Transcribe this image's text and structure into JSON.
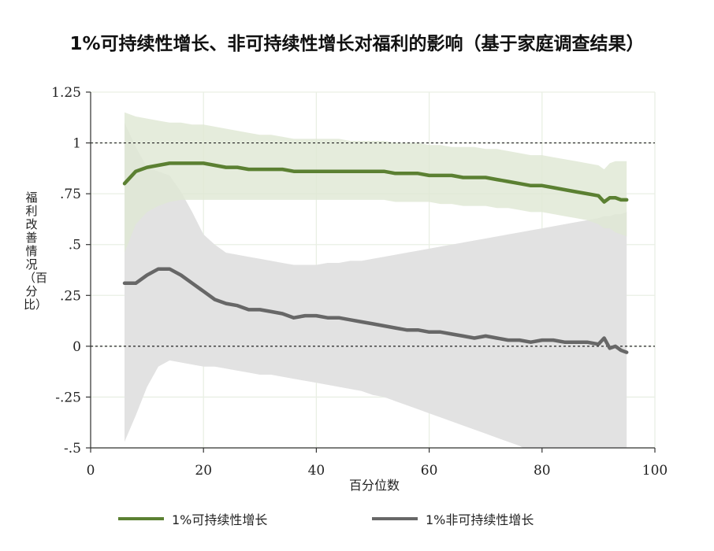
{
  "title": "1%可持续性增长、非可持续性增长对福利的影响（基于家庭调查结果）",
  "chart_data": {
    "type": "line",
    "title": "1%可持续性增长、非可持续性增长对福利的影响（基于家庭调查结果）",
    "xlabel": "百分位数",
    "ylabel": "福利改善情况（百分比）",
    "xlim": [
      0,
      100
    ],
    "ylim": [
      -0.5,
      1.25
    ],
    "xticks": [
      "0",
      "20",
      "40",
      "60",
      "80",
      "100"
    ],
    "yticks": [
      {
        "v": 1.25,
        "label": "1.25"
      },
      {
        "v": 1,
        "label": "1"
      },
      {
        "v": 0.75,
        "label": ".75"
      },
      {
        "v": 0.5,
        "label": ".5"
      },
      {
        "v": 0.25,
        "label": ".25"
      },
      {
        "v": 0,
        "label": "0"
      },
      {
        "v": -0.25,
        "label": "-.25"
      },
      {
        "v": -0.5,
        "label": "-.5"
      }
    ],
    "reference_lines": [
      1,
      0
    ],
    "grid": true,
    "legend_position": "bottom",
    "x": [
      6,
      8,
      10,
      12,
      14,
      16,
      18,
      20,
      22,
      24,
      26,
      28,
      30,
      32,
      34,
      36,
      38,
      40,
      42,
      44,
      46,
      48,
      50,
      52,
      54,
      56,
      58,
      60,
      62,
      64,
      66,
      68,
      70,
      72,
      74,
      76,
      78,
      80,
      82,
      84,
      86,
      88,
      90,
      91,
      92,
      93,
      94,
      95
    ],
    "series": [
      {
        "name": "1%可持续性增长",
        "color": "#5b8032",
        "band_color": "#dfe8d4",
        "values": [
          0.8,
          0.86,
          0.88,
          0.89,
          0.9,
          0.9,
          0.9,
          0.9,
          0.89,
          0.88,
          0.88,
          0.87,
          0.87,
          0.87,
          0.87,
          0.86,
          0.86,
          0.86,
          0.86,
          0.86,
          0.86,
          0.86,
          0.86,
          0.86,
          0.85,
          0.85,
          0.85,
          0.84,
          0.84,
          0.84,
          0.83,
          0.83,
          0.83,
          0.82,
          0.81,
          0.8,
          0.79,
          0.79,
          0.78,
          0.77,
          0.76,
          0.75,
          0.74,
          0.71,
          0.73,
          0.73,
          0.72,
          0.72
        ],
        "lower": [
          0.46,
          0.6,
          0.66,
          0.69,
          0.71,
          0.72,
          0.72,
          0.72,
          0.72,
          0.72,
          0.72,
          0.72,
          0.72,
          0.72,
          0.72,
          0.72,
          0.72,
          0.72,
          0.72,
          0.72,
          0.72,
          0.72,
          0.72,
          0.72,
          0.71,
          0.71,
          0.71,
          0.71,
          0.7,
          0.7,
          0.69,
          0.69,
          0.69,
          0.68,
          0.68,
          0.67,
          0.66,
          0.66,
          0.65,
          0.64,
          0.63,
          0.62,
          0.6,
          0.58,
          0.58,
          0.56,
          0.55,
          0.54
        ],
        "upper": [
          1.15,
          1.13,
          1.12,
          1.11,
          1.1,
          1.1,
          1.09,
          1.09,
          1.08,
          1.07,
          1.06,
          1.05,
          1.04,
          1.04,
          1.03,
          1.02,
          1.02,
          1.02,
          1.02,
          1.02,
          1.01,
          1.01,
          1.01,
          1.01,
          1.0,
          1.0,
          1.0,
          0.99,
          0.99,
          0.98,
          0.98,
          0.98,
          0.97,
          0.97,
          0.96,
          0.95,
          0.94,
          0.94,
          0.93,
          0.92,
          0.91,
          0.9,
          0.89,
          0.87,
          0.9,
          0.91,
          0.91,
          0.91
        ]
      },
      {
        "name": "1%非可持续性增长",
        "color": "#676767",
        "band_color": "#e2e2e2",
        "values": [
          0.31,
          0.31,
          0.35,
          0.38,
          0.38,
          0.35,
          0.31,
          0.27,
          0.23,
          0.21,
          0.2,
          0.18,
          0.18,
          0.17,
          0.16,
          0.14,
          0.15,
          0.15,
          0.14,
          0.14,
          0.13,
          0.12,
          0.11,
          0.1,
          0.09,
          0.08,
          0.08,
          0.07,
          0.07,
          0.06,
          0.05,
          0.04,
          0.05,
          0.04,
          0.03,
          0.03,
          0.02,
          0.03,
          0.03,
          0.02,
          0.02,
          0.02,
          0.01,
          0.04,
          -0.01,
          0.0,
          -0.02,
          -0.03
        ],
        "lower": [
          -0.47,
          -0.34,
          -0.2,
          -0.1,
          -0.07,
          -0.08,
          -0.09,
          -0.1,
          -0.1,
          -0.11,
          -0.12,
          -0.13,
          -0.14,
          -0.14,
          -0.15,
          -0.16,
          -0.17,
          -0.18,
          -0.19,
          -0.2,
          -0.21,
          -0.22,
          -0.24,
          -0.25,
          -0.27,
          -0.29,
          -0.31,
          -0.33,
          -0.35,
          -0.37,
          -0.39,
          -0.41,
          -0.43,
          -0.45,
          -0.47,
          -0.49,
          -0.52,
          -0.54,
          -0.56,
          -0.58,
          -0.61,
          -0.63,
          -0.66,
          -0.68,
          -0.7,
          -0.71,
          -0.72,
          -0.73
        ],
        "upper": [
          1.1,
          0.98,
          0.88,
          0.86,
          0.84,
          0.76,
          0.66,
          0.55,
          0.5,
          0.46,
          0.45,
          0.44,
          0.43,
          0.42,
          0.41,
          0.4,
          0.4,
          0.4,
          0.41,
          0.41,
          0.42,
          0.42,
          0.43,
          0.44,
          0.45,
          0.46,
          0.47,
          0.48,
          0.49,
          0.5,
          0.51,
          0.52,
          0.53,
          0.54,
          0.55,
          0.56,
          0.57,
          0.58,
          0.59,
          0.6,
          0.61,
          0.62,
          0.63,
          0.64,
          0.64,
          0.65,
          0.65,
          0.66
        ]
      }
    ]
  },
  "legend": [
    {
      "label": "1%可持续性增长",
      "color": "#5b8032"
    },
    {
      "label": "1%非可持续性增长",
      "color": "#676767"
    }
  ]
}
